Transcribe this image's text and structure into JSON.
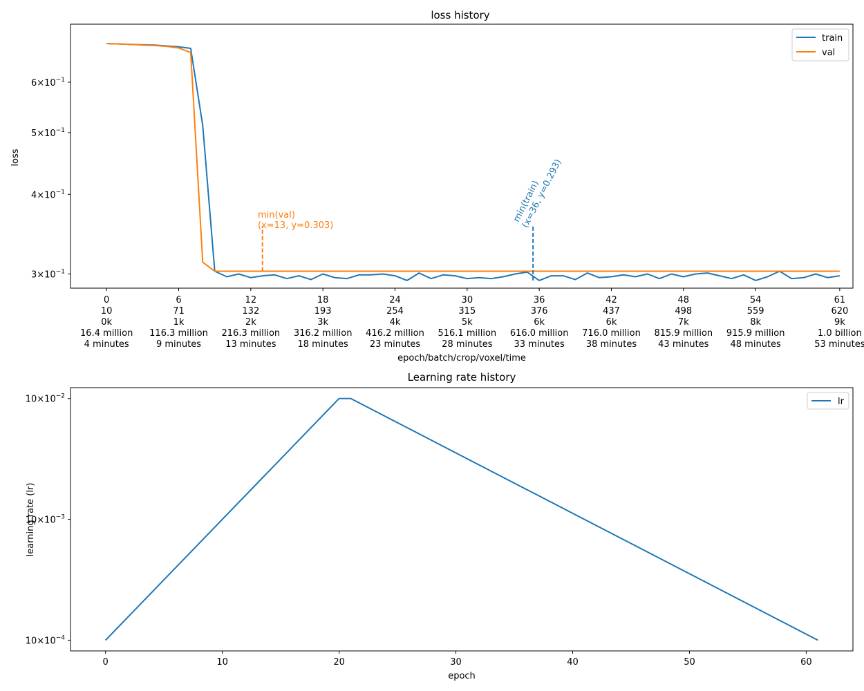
{
  "colors": {
    "train": "#1f77b4",
    "val": "#ff7f0e",
    "lr": "#1f77b4",
    "text": "#000000"
  },
  "chart_data": [
    {
      "type": "line",
      "title": "loss history",
      "xlabel": "epoch/batch/crop/voxel/time",
      "ylabel": "loss",
      "yscale": "log",
      "ylim": [
        0.285,
        0.74
      ],
      "xlim": [
        -3,
        62.1
      ],
      "grid": false,
      "legend_position": "top-right",
      "x_tick_labels": [
        {
          "epoch": 0,
          "lines": [
            "0",
            "10",
            "0k",
            "16.4 million",
            "4 minutes"
          ]
        },
        {
          "epoch": 6,
          "lines": [
            "6",
            "71",
            "1k",
            "116.3 million",
            "9 minutes"
          ]
        },
        {
          "epoch": 12,
          "lines": [
            "12",
            "132",
            "2k",
            "216.3 million",
            "13 minutes"
          ]
        },
        {
          "epoch": 18,
          "lines": [
            "18",
            "193",
            "3k",
            "316.2 million",
            "18 minutes"
          ]
        },
        {
          "epoch": 24,
          "lines": [
            "24",
            "254",
            "4k",
            "416.2 million",
            "23 minutes"
          ]
        },
        {
          "epoch": 30,
          "lines": [
            "30",
            "315",
            "5k",
            "516.1 million",
            "28 minutes"
          ]
        },
        {
          "epoch": 36,
          "lines": [
            "36",
            "376",
            "6k",
            "616.0 million",
            "33 minutes"
          ]
        },
        {
          "epoch": 42,
          "lines": [
            "42",
            "437",
            "6k",
            "716.0 million",
            "38 minutes"
          ]
        },
        {
          "epoch": 48,
          "lines": [
            "48",
            "498",
            "7k",
            "815.9 million",
            "43 minutes"
          ]
        },
        {
          "epoch": 54,
          "lines": [
            "54",
            "559",
            "8k",
            "915.9 million",
            "48 minutes"
          ]
        },
        {
          "epoch": 61,
          "lines": [
            "61",
            "620",
            "9k",
            "1.0 billion",
            "53 minutes"
          ]
        }
      ],
      "y_ticks": [
        {
          "value": 0.6,
          "mantissa": "6",
          "exp": "−1"
        },
        {
          "value": 0.5,
          "mantissa": "5",
          "exp": "−1"
        },
        {
          "value": 0.4,
          "mantissa": "4",
          "exp": "−1"
        },
        {
          "value": 0.3,
          "mantissa": "3",
          "exp": "−1"
        }
      ],
      "series": [
        {
          "name": "train",
          "x": [
            0,
            1,
            2,
            3,
            4,
            5,
            6,
            7,
            8,
            9,
            10,
            11,
            12,
            13,
            14,
            15,
            16,
            17,
            18,
            19,
            20,
            21,
            22,
            23,
            24,
            25,
            26,
            27,
            28,
            29,
            30,
            31,
            32,
            33,
            34,
            35,
            36,
            37,
            38,
            39,
            40,
            41,
            42,
            43,
            44,
            45,
            46,
            47,
            48,
            49,
            50,
            51,
            52,
            53,
            54,
            55,
            56,
            57,
            58,
            59,
            60,
            61
          ],
          "y": [
            0.69,
            0.689,
            0.688,
            0.687,
            0.686,
            0.684,
            0.682,
            0.678,
            0.513,
            0.303,
            0.297,
            0.3,
            0.296,
            0.298,
            0.299,
            0.295,
            0.298,
            0.294,
            0.3,
            0.296,
            0.295,
            0.299,
            0.299,
            0.3,
            0.298,
            0.293,
            0.301,
            0.295,
            0.299,
            0.298,
            0.295,
            0.296,
            0.295,
            0.297,
            0.3,
            0.302,
            0.293,
            0.298,
            0.298,
            0.294,
            0.301,
            0.296,
            0.297,
            0.299,
            0.297,
            0.3,
            0.295,
            0.3,
            0.297,
            0.3,
            0.301,
            0.298,
            0.295,
            0.299,
            0.293,
            0.297,
            0.303,
            0.295,
            0.296,
            0.3,
            0.296,
            0.298
          ]
        },
        {
          "name": "val",
          "x": [
            0,
            1,
            2,
            3,
            4,
            5,
            6,
            7,
            8,
            9,
            10,
            11,
            12,
            13,
            14,
            15,
            16,
            17,
            18,
            19,
            20,
            21,
            22,
            23,
            24,
            25,
            26,
            27,
            28,
            29,
            30,
            31,
            32,
            33,
            34,
            35,
            36,
            37,
            38,
            39,
            40,
            41,
            42,
            43,
            44,
            45,
            46,
            47,
            48,
            49,
            50,
            51,
            52,
            53,
            54,
            55,
            56,
            57,
            58,
            59,
            60,
            61
          ],
          "y": [
            0.69,
            0.689,
            0.688,
            0.686,
            0.685,
            0.683,
            0.679,
            0.668,
            0.313,
            0.303,
            0.303,
            0.303,
            0.303,
            0.303,
            0.303,
            0.303,
            0.303,
            0.303,
            0.303,
            0.303,
            0.303,
            0.303,
            0.303,
            0.303,
            0.303,
            0.303,
            0.303,
            0.303,
            0.303,
            0.303,
            0.303,
            0.303,
            0.303,
            0.303,
            0.303,
            0.303,
            0.303,
            0.303,
            0.303,
            0.303,
            0.303,
            0.303,
            0.303,
            0.303,
            0.303,
            0.303,
            0.303,
            0.303,
            0.303,
            0.303,
            0.303,
            0.303,
            0.303,
            0.303,
            0.303,
            0.303,
            0.303,
            0.303,
            0.303,
            0.303,
            0.303,
            0.303
          ]
        }
      ],
      "annotations": [
        {
          "series": "val",
          "x": 13,
          "y": 0.303,
          "label_line1": "min(val)",
          "label_line2": "(x=13, y=0.303)",
          "rotated": false
        },
        {
          "series": "train",
          "x": 36,
          "y": 0.293,
          "label_line1": "min(train)",
          "label_line2": "(x=36, y=0.293)",
          "rotated": true
        }
      ]
    },
    {
      "type": "line",
      "title": "Learning rate history",
      "xlabel": "epoch",
      "ylabel": "learning rate (lr)",
      "yscale": "log",
      "ylim": [
        8.15e-05,
        0.0123
      ],
      "xlim": [
        -3,
        64
      ],
      "grid": false,
      "legend_position": "top-right",
      "x_ticks": [
        0,
        10,
        20,
        30,
        40,
        50,
        60
      ],
      "y_ticks": [
        {
          "value": 0.01,
          "mantissa": "10",
          "exp": "−2"
        },
        {
          "value": 0.001,
          "mantissa": "10",
          "exp": "−3"
        },
        {
          "value": 0.0001,
          "mantissa": "10",
          "exp": "−4"
        }
      ],
      "series": [
        {
          "name": "lr",
          "x": [
            0,
            20,
            21,
            61
          ],
          "y": [
            0.0001,
            0.01,
            0.01,
            0.0001
          ]
        }
      ]
    }
  ]
}
